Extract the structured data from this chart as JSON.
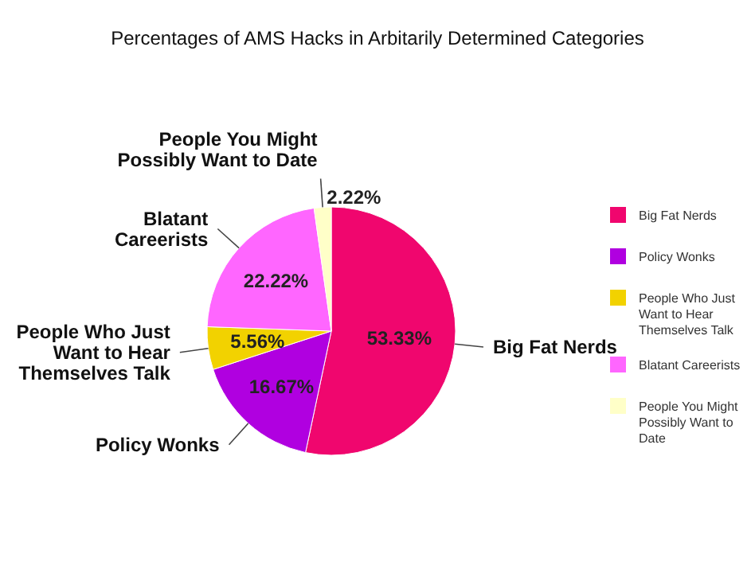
{
  "chart_data": {
    "type": "pie",
    "title": "Percentages of AMS Hacks in Arbitarily Determined Categories",
    "categories": [
      "Big Fat Nerds",
      "Policy Wonks",
      "People Who Just Want to Hear Themselves Talk",
      "Blatant Careerists",
      "People You Might Possibly Want to Date"
    ],
    "values": [
      53.33,
      16.67,
      5.56,
      22.22,
      2.22
    ],
    "colors": [
      "#f0066e",
      "#b000e0",
      "#f2d200",
      "#ff66ff",
      "#ffffc8"
    ],
    "value_labels": [
      "53.33%",
      "16.67%",
      "5.56%",
      "22.22%",
      "2.22%"
    ],
    "legend": "right"
  }
}
